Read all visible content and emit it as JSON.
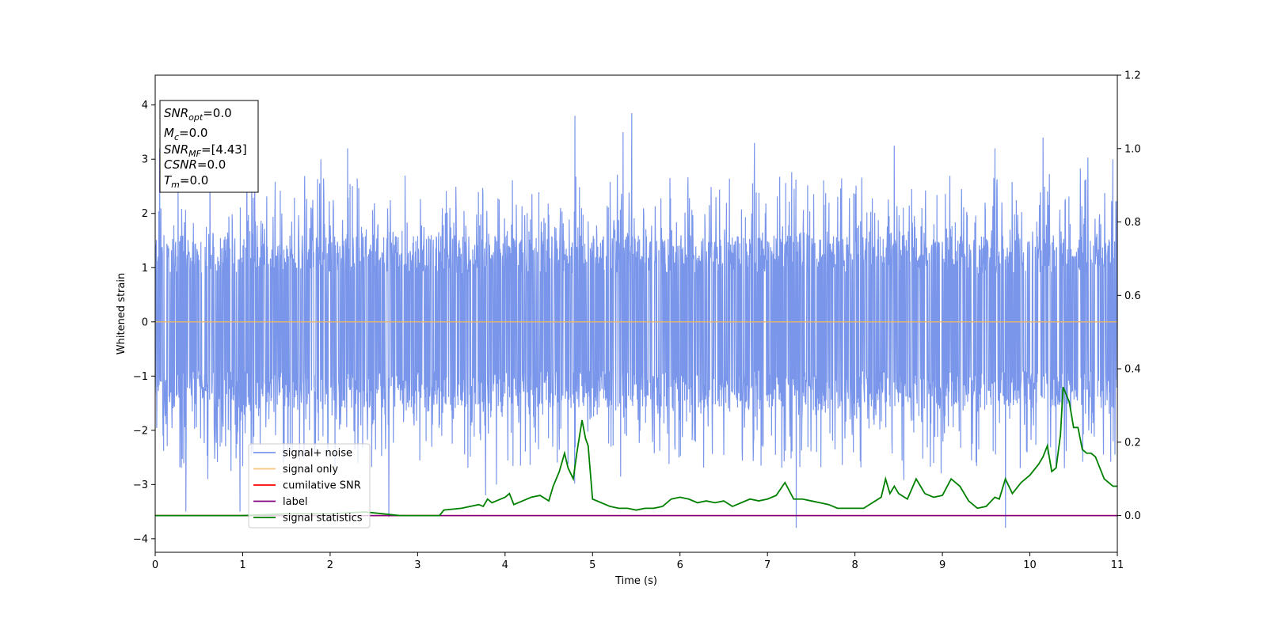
{
  "chart_data": {
    "type": "line",
    "title": "",
    "xlabel": "Time (s)",
    "ylabel": "Whitened strain",
    "xlim": [
      0,
      11
    ],
    "ylim": [
      -4.25,
      4.55
    ],
    "y2lim": [
      -0.1,
      1.2
    ],
    "xticks": [
      0,
      1,
      2,
      3,
      4,
      5,
      6,
      7,
      8,
      9,
      10,
      11
    ],
    "yticks": [
      -4,
      -3,
      -2,
      -1,
      0,
      1,
      2,
      3,
      4
    ],
    "y2ticks": [
      0.0,
      0.2,
      0.4,
      0.6,
      0.8,
      1.0,
      1.2
    ],
    "grid": false,
    "legend_position": "lower-left",
    "series": [
      {
        "name": "signal+ noise",
        "axis": "left",
        "color": "#4169e1",
        "description": "dense noise band",
        "typical_amplitude": 1.8,
        "spikes": [
          {
            "x": 0.35,
            "y": -3.5
          },
          {
            "x": 0.6,
            "y": -2.9
          },
          {
            "x": 0.97,
            "y": -3.5
          },
          {
            "x": 2.67,
            "y": -3.6
          },
          {
            "x": 3.9,
            "y": -3.0
          },
          {
            "x": 4.8,
            "y": 3.8
          },
          {
            "x": 5.45,
            "y": 3.85
          },
          {
            "x": 5.35,
            "y": 3.5
          },
          {
            "x": 7.33,
            "y": -3.8
          },
          {
            "x": 9.72,
            "y": -3.8
          },
          {
            "x": 10.15,
            "y": 3.4
          },
          {
            "x": 10.95,
            "y": 3.0
          },
          {
            "x": 0.05,
            "y": 3.2
          },
          {
            "x": 1.05,
            "y": 3.3
          },
          {
            "x": 2.2,
            "y": 3.2
          },
          {
            "x": 6.85,
            "y": 3.3
          },
          {
            "x": 8.45,
            "y": 3.25
          },
          {
            "x": 9.6,
            "y": 3.2
          }
        ]
      },
      {
        "name": "signal only",
        "axis": "left",
        "color": "#f4b860",
        "x": [
          0,
          11
        ],
        "y": [
          0,
          0
        ]
      },
      {
        "name": "cumilative SNR",
        "axis": "right",
        "color": "#ff0000",
        "x": [
          0,
          11
        ],
        "y": [
          0,
          0
        ]
      },
      {
        "name": "label",
        "axis": "right",
        "color": "#800080",
        "x": [
          0,
          11
        ],
        "y": [
          0,
          0
        ]
      },
      {
        "name": "signal statistics",
        "axis": "right",
        "color": "#008000",
        "x": [
          0,
          0.5,
          1.0,
          1.5,
          2.0,
          2.4,
          2.6,
          2.8,
          3.0,
          3.25,
          3.3,
          3.5,
          3.7,
          3.75,
          3.8,
          3.85,
          4.0,
          4.05,
          4.1,
          4.2,
          4.3,
          4.4,
          4.5,
          4.55,
          4.62,
          4.68,
          4.72,
          4.78,
          4.82,
          4.88,
          4.92,
          4.95,
          5.0,
          5.1,
          5.2,
          5.3,
          5.4,
          5.5,
          5.6,
          5.7,
          5.8,
          5.9,
          6.0,
          6.1,
          6.2,
          6.3,
          6.4,
          6.5,
          6.6,
          6.7,
          6.8,
          6.9,
          7.0,
          7.1,
          7.2,
          7.3,
          7.4,
          7.5,
          7.6,
          7.7,
          7.8,
          7.9,
          8.0,
          8.1,
          8.2,
          8.3,
          8.35,
          8.4,
          8.45,
          8.5,
          8.6,
          8.7,
          8.75,
          8.8,
          8.9,
          9.0,
          9.1,
          9.2,
          9.3,
          9.4,
          9.5,
          9.6,
          9.65,
          9.72,
          9.8,
          9.9,
          10.0,
          10.1,
          10.15,
          10.2,
          10.25,
          10.3,
          10.35,
          10.38,
          10.45,
          10.5,
          10.55,
          10.6,
          10.65,
          10.7,
          10.75,
          10.8,
          10.85,
          10.9,
          10.95,
          11.0
        ],
        "y": [
          0.0,
          0.0,
          0.0,
          0.005,
          0.005,
          0.01,
          0.005,
          0.0,
          0.0,
          0.0,
          0.015,
          0.02,
          0.03,
          0.025,
          0.045,
          0.035,
          0.05,
          0.06,
          0.03,
          0.04,
          0.05,
          0.055,
          0.04,
          0.08,
          0.12,
          0.17,
          0.13,
          0.1,
          0.17,
          0.26,
          0.21,
          0.19,
          0.045,
          0.035,
          0.025,
          0.02,
          0.02,
          0.015,
          0.02,
          0.02,
          0.025,
          0.045,
          0.05,
          0.045,
          0.035,
          0.04,
          0.035,
          0.04,
          0.025,
          0.035,
          0.045,
          0.04,
          0.045,
          0.055,
          0.09,
          0.045,
          0.045,
          0.04,
          0.035,
          0.03,
          0.02,
          0.02,
          0.02,
          0.02,
          0.035,
          0.05,
          0.1,
          0.06,
          0.08,
          0.06,
          0.045,
          0.1,
          0.08,
          0.06,
          0.05,
          0.055,
          0.1,
          0.08,
          0.04,
          0.02,
          0.025,
          0.05,
          0.045,
          0.1,
          0.06,
          0.09,
          0.11,
          0.14,
          0.16,
          0.19,
          0.12,
          0.13,
          0.22,
          0.35,
          0.31,
          0.24,
          0.24,
          0.18,
          0.17,
          0.17,
          0.16,
          0.13,
          0.1,
          0.09,
          0.08,
          0.08
        ]
      }
    ],
    "annotations": {
      "info_box": [
        {
          "base": "SNR",
          "sub": "opt",
          "value": "=0.0"
        },
        {
          "base": "M",
          "sub": "c",
          "value": "=0.0"
        },
        {
          "base": "SNR",
          "sub": "MF",
          "value": "=[4.43]"
        },
        {
          "base": "CSNR",
          "sub": "",
          "value": "=0.0"
        },
        {
          "base": "T",
          "sub": "m",
          "value": "=0.0"
        }
      ]
    }
  }
}
